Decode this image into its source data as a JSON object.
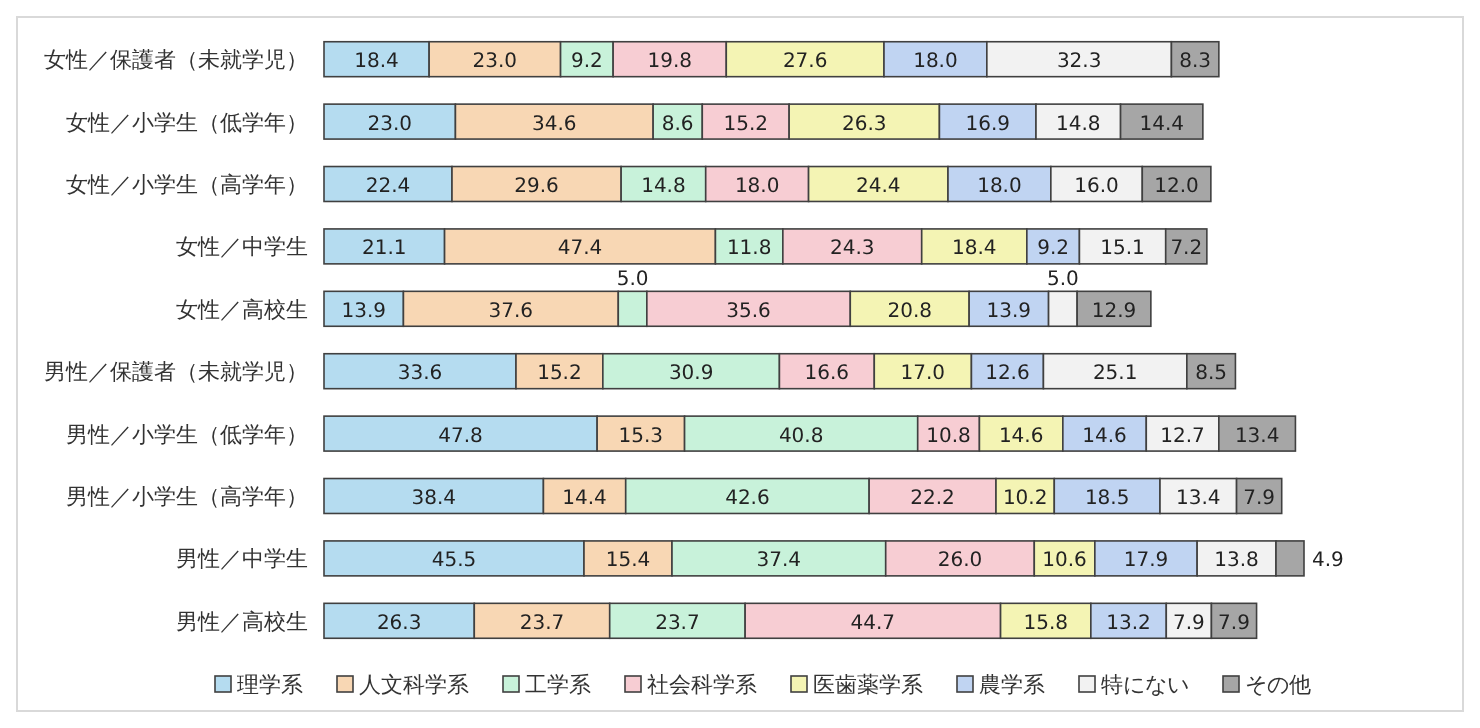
{
  "chart_data": {
    "type": "bar",
    "orientation": "horizontal",
    "stacked": true,
    "legend": "bottom",
    "categories": [
      "女性／保護者（未就学児）",
      "女性／小学生（低学年）",
      "女性／小学生（高学年）",
      "女性／中学生",
      "女性／高校生",
      "男性／保護者（未就学児）",
      "男性／小学生（低学年）",
      "男性／小学生（高学年）",
      "男性／中学生",
      "男性／高校生"
    ],
    "series": [
      {
        "name": "理学系",
        "color": "#b5dcf0",
        "values": [
          18.4,
          23.0,
          22.4,
          21.1,
          13.9,
          33.6,
          47.8,
          38.4,
          45.5,
          26.3
        ],
        "value_labels": [
          "18.4",
          "23.0",
          "22.4",
          "21.1",
          "13.9",
          "33.6",
          "47.8",
          "38.4",
          "45.5",
          "26.3"
        ]
      },
      {
        "name": "人文科学系",
        "color": "#f8d7b4",
        "values": [
          23.0,
          34.6,
          29.6,
          47.4,
          37.6,
          15.2,
          15.3,
          14.4,
          15.4,
          23.7
        ],
        "value_labels": [
          "23.0",
          "34.6",
          "29.6",
          "47.4",
          "37.6",
          "15.2",
          "15.3",
          "14.4",
          "15.4",
          "23.7"
        ]
      },
      {
        "name": "工学系",
        "color": "#c8f2da",
        "values": [
          9.2,
          8.6,
          14.8,
          11.8,
          5.0,
          30.9,
          40.8,
          42.6,
          37.4,
          23.7
        ],
        "value_labels": [
          "9.2",
          "8.6",
          "14.8",
          "11.8",
          "5.0",
          "30.9",
          "40.8",
          "42.6",
          "37.4",
          "23.7"
        ]
      },
      {
        "name": "社会科学系",
        "color": "#f7cdd3",
        "values": [
          19.8,
          15.2,
          18.0,
          24.3,
          35.6,
          16.6,
          10.8,
          22.2,
          26.0,
          44.7
        ],
        "value_labels": [
          "19.8",
          "15.2",
          "18.0",
          "24.3",
          "35.6",
          "16.6",
          "10.8",
          "22.2",
          "26.0",
          "44.7"
        ]
      },
      {
        "name": "医歯薬学系",
        "color": "#f4f4b4",
        "values": [
          27.6,
          26.3,
          24.4,
          18.4,
          20.8,
          17.0,
          14.6,
          10.2,
          10.6,
          15.8
        ],
        "value_labels": [
          "27.6",
          "26.3",
          "24.4",
          "18.4",
          "20.8",
          "17.0",
          "14.6",
          "10.2",
          "10.6",
          "15.8"
        ]
      },
      {
        "name": "農学系",
        "color": "#c0d4f2",
        "values": [
          18.0,
          16.9,
          18.0,
          9.2,
          13.9,
          12.6,
          14.6,
          18.5,
          17.9,
          13.2
        ],
        "value_labels": [
          "18.0",
          "16.9",
          "18.0",
          "9.2",
          "13.9",
          "12.6",
          "14.6",
          "18.5",
          "17.9",
          "13.2"
        ]
      },
      {
        "name": "特にない",
        "color": "#f2f2f2",
        "values": [
          32.3,
          14.8,
          16.0,
          15.1,
          5.0,
          25.1,
          12.7,
          13.4,
          13.8,
          7.9
        ],
        "value_labels": [
          "32.3",
          "14.8",
          "16.0",
          "15.1",
          "5.0",
          "25.1",
          "12.7",
          "13.4",
          "13.8",
          "7.9"
        ]
      },
      {
        "name": "その他",
        "color": "#a6a6a6",
        "values": [
          8.3,
          14.4,
          12.0,
          7.2,
          12.9,
          8.5,
          13.4,
          7.9,
          4.9,
          7.9
        ],
        "value_labels": [
          "8.3",
          "14.4",
          "12.0",
          "7.2",
          "12.9",
          "8.5",
          "13.4",
          "7.9",
          "4.9",
          "7.9"
        ]
      }
    ]
  }
}
